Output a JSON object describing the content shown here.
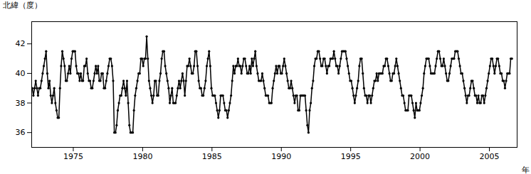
{
  "chart_data": {
    "type": "line",
    "marker": "o",
    "grid": false,
    "ylabel": "北緯（度）",
    "xlabel": "年",
    "xlim": [
      1972.0,
      2007.0
    ],
    "xticks": [
      1975,
      1980,
      1985,
      1990,
      1995,
      2000,
      2005
    ],
    "ylim": [
      35.0,
      43.5
    ],
    "yticks": [
      36,
      38,
      40,
      42
    ],
    "x": [
      1972.0416666666667,
      1972.125,
      1972.2083333333333,
      1972.2916666666667,
      1972.375,
      1972.4583333333333,
      1972.5416666666667,
      1972.625,
      1972.7083333333333,
      1972.7916666666667,
      1972.875,
      1972.9583333333333,
      1973.0416666666667,
      1973.125,
      1973.2083333333333,
      1973.2916666666667,
      1973.375,
      1973.4583333333333,
      1973.5416666666667,
      1973.625,
      1973.7083333333333,
      1973.7916666666667,
      1973.875,
      1973.9583333333333,
      1974.0416666666667,
      1974.125,
      1974.2083333333333,
      1974.2916666666667,
      1974.375,
      1974.4583333333333,
      1974.5416666666667,
      1974.625,
      1974.7083333333333,
      1974.7916666666667,
      1974.875,
      1974.9583333333333,
      1975.0416666666667,
      1975.125,
      1975.2083333333333,
      1975.2916666666667,
      1975.375,
      1975.4583333333333,
      1975.5416666666667,
      1975.625,
      1975.7083333333333,
      1975.7916666666667,
      1975.875,
      1975.9583333333333,
      1976.0416666666667,
      1976.125,
      1976.2083333333333,
      1976.2916666666667,
      1976.375,
      1976.4583333333333,
      1976.5416666666667,
      1976.625,
      1976.7083333333333,
      1976.7916666666667,
      1976.875,
      1976.9583333333333,
      1977.0416666666667,
      1977.125,
      1977.2083333333333,
      1977.2916666666667,
      1977.375,
      1977.4583333333333,
      1977.5416666666667,
      1977.625,
      1977.7083333333333,
      1977.7916666666667,
      1977.875,
      1977.9583333333333,
      1978.0416666666667,
      1978.125,
      1978.2083333333333,
      1978.2916666666667,
      1978.375,
      1978.4583333333333,
      1978.5416666666667,
      1978.625,
      1978.7083333333333,
      1978.7916666666667,
      1978.875,
      1978.9583333333333,
      1979.0416666666667,
      1979.125,
      1979.2083333333333,
      1979.2916666666667,
      1979.375,
      1979.4583333333333,
      1979.5416666666667,
      1979.625,
      1979.7083333333333,
      1979.7916666666667,
      1979.875,
      1979.9583333333333,
      1980.0416666666667,
      1980.125,
      1980.2083333333333,
      1980.2916666666667,
      1980.375,
      1980.4583333333333,
      1980.5416666666667,
      1980.625,
      1980.7083333333333,
      1980.7916666666667,
      1980.875,
      1980.9583333333333,
      1981.0416666666667,
      1981.125,
      1981.2083333333333,
      1981.2916666666667,
      1981.375,
      1981.4583333333333,
      1981.5416666666667,
      1981.625,
      1981.7083333333333,
      1981.7916666666667,
      1981.875,
      1981.9583333333333,
      1982.0416666666667,
      1982.125,
      1982.2083333333333,
      1982.2916666666667,
      1982.375,
      1982.4583333333333,
      1982.5416666666667,
      1982.625,
      1982.7083333333333,
      1982.7916666666667,
      1982.875,
      1982.9583333333333,
      1983.0416666666667,
      1983.125,
      1983.2083333333333,
      1983.2916666666667,
      1983.375,
      1983.4583333333333,
      1983.5416666666667,
      1983.625,
      1983.7083333333333,
      1983.7916666666667,
      1983.875,
      1983.9583333333333,
      1984.0416666666667,
      1984.125,
      1984.2083333333333,
      1984.2916666666667,
      1984.375,
      1984.4583333333333,
      1984.5416666666667,
      1984.625,
      1984.7083333333333,
      1984.7916666666667,
      1984.875,
      1984.9583333333333,
      1985.0416666666667,
      1985.125,
      1985.2083333333333,
      1985.2916666666667,
      1985.375,
      1985.4583333333333,
      1985.5416666666667,
      1985.625,
      1985.7083333333333,
      1985.7916666666667,
      1985.875,
      1985.9583333333333,
      1986.0416666666667,
      1986.125,
      1986.2083333333333,
      1986.2916666666667,
      1986.375,
      1986.4583333333333,
      1986.5416666666667,
      1986.625,
      1986.7083333333333,
      1986.7916666666667,
      1986.875,
      1986.9583333333333,
      1987.0416666666667,
      1987.125,
      1987.2083333333333,
      1987.2916666666667,
      1987.375,
      1987.4583333333333,
      1987.5416666666667,
      1987.625,
      1987.7083333333333,
      1987.7916666666667,
      1987.875,
      1987.9583333333333,
      1988.0416666666667,
      1988.125,
      1988.2083333333333,
      1988.2916666666667,
      1988.375,
      1988.4583333333333,
      1988.5416666666667,
      1988.625,
      1988.7083333333333,
      1988.7916666666667,
      1988.875,
      1988.9583333333333,
      1989.0416666666667,
      1989.125,
      1989.2083333333333,
      1989.2916666666667,
      1989.375,
      1989.4583333333333,
      1989.5416666666667,
      1989.625,
      1989.7083333333333,
      1989.7916666666667,
      1989.875,
      1989.9583333333333,
      1990.0416666666667,
      1990.125,
      1990.2083333333333,
      1990.2916666666667,
      1990.375,
      1990.4583333333333,
      1990.5416666666667,
      1990.625,
      1990.7083333333333,
      1990.7916666666667,
      1990.875,
      1990.9583333333333,
      1991.0416666666667,
      1991.125,
      1991.2083333333333,
      1991.2916666666667,
      1991.375,
      1991.4583333333333,
      1991.5416666666667,
      1991.625,
      1991.7083333333333,
      1991.7916666666667,
      1991.875,
      1991.9583333333333,
      1992.0416666666667,
      1992.125,
      1992.2083333333333,
      1992.2916666666667,
      1992.375,
      1992.4583333333333,
      1992.5416666666667,
      1992.625,
      1992.7083333333333,
      1992.7916666666667,
      1992.875,
      1992.9583333333333,
      1993.0416666666667,
      1993.125,
      1993.2083333333333,
      1993.2916666666667,
      1993.375,
      1993.4583333333333,
      1993.5416666666667,
      1993.625,
      1993.7083333333333,
      1993.7916666666667,
      1993.875,
      1993.9583333333333,
      1994.0416666666667,
      1994.125,
      1994.2083333333333,
      1994.2916666666667,
      1994.375,
      1994.4583333333333,
      1994.5416666666667,
      1994.625,
      1994.7083333333333,
      1994.7916666666667,
      1994.875,
      1994.9583333333333,
      1995.0416666666667,
      1995.125,
      1995.2083333333333,
      1995.2916666666667,
      1995.375,
      1995.4583333333333,
      1995.5416666666667,
      1995.625,
      1995.7083333333333,
      1995.7916666666667,
      1995.875,
      1995.9583333333333,
      1996.0416666666667,
      1996.125,
      1996.2083333333333,
      1996.2916666666667,
      1996.375,
      1996.4583333333333,
      1996.5416666666667,
      1996.625,
      1996.7083333333333,
      1996.7916666666667,
      1996.875,
      1996.9583333333333,
      1997.0416666666667,
      1997.125,
      1997.2083333333333,
      1997.2916666666667,
      1997.375,
      1997.4583333333333,
      1997.5416666666667,
      1997.625,
      1997.7083333333333,
      1997.7916666666667,
      1997.875,
      1997.9583333333333,
      1998.0416666666667,
      1998.125,
      1998.2083333333333,
      1998.2916666666667,
      1998.375,
      1998.4583333333333,
      1998.5416666666667,
      1998.625,
      1998.7083333333333,
      1998.7916666666667,
      1998.875,
      1998.9583333333333,
      1999.0416666666667,
      1999.125,
      1999.2083333333333,
      1999.2916666666667,
      1999.375,
      1999.4583333333333,
      1999.5416666666667,
      1999.625,
      1999.7083333333333,
      1999.7916666666667,
      1999.875,
      1999.9583333333333,
      2000.0416666666667,
      2000.125,
      2000.2083333333333,
      2000.2916666666667,
      2000.375,
      2000.4583333333333,
      2000.5416666666667,
      2000.625,
      2000.7083333333333,
      2000.7916666666667,
      2000.875,
      2000.9583333333333,
      2001.0416666666667,
      2001.125,
      2001.2083333333333,
      2001.2916666666667,
      2001.375,
      2001.4583333333333,
      2001.5416666666667,
      2001.625,
      2001.7083333333333,
      2001.7916666666667,
      2001.875,
      2001.9583333333333,
      2002.0416666666667,
      2002.125,
      2002.2083333333333,
      2002.2916666666667,
      2002.375,
      2002.4583333333333,
      2002.5416666666667,
      2002.625,
      2002.7083333333333,
      2002.7916666666667,
      2002.875,
      2002.9583333333333,
      2003.0416666666667,
      2003.125,
      2003.2083333333333,
      2003.2916666666667,
      2003.375,
      2003.4583333333333,
      2003.5416666666667,
      2003.625,
      2003.7083333333333,
      2003.7916666666667,
      2003.875,
      2003.9583333333333,
      2004.0416666666667,
      2004.125,
      2004.2083333333333,
      2004.2916666666667,
      2004.375,
      2004.4583333333333,
      2004.5416666666667,
      2004.625,
      2004.7083333333333,
      2004.7916666666667,
      2004.875,
      2004.9583333333333,
      2005.0416666666667,
      2005.125,
      2005.2083333333333,
      2005.2916666666667,
      2005.375,
      2005.4583333333333,
      2005.5416666666667,
      2005.625,
      2005.7083333333333,
      2005.7916666666667,
      2005.875,
      2005.9583333333333,
      2006.0416666666667,
      2006.125,
      2006.2083333333333,
      2006.2916666666667,
      2006.375,
      2006.4583333333333,
      2006.5416666666667,
      2006.625
    ],
    "values": [
      39.0,
      38.5,
      39.0,
      39.5,
      39.0,
      38.5,
      39.0,
      39.0,
      39.5,
      40.0,
      40.5,
      41.0,
      41.5,
      40.0,
      39.0,
      39.5,
      38.5,
      38.0,
      38.5,
      39.0,
      38.0,
      37.5,
      37.0,
      37.0,
      39.0,
      40.5,
      41.5,
      41.0,
      40.5,
      39.5,
      39.5,
      40.0,
      40.5,
      40.0,
      41.0,
      41.5,
      41.5,
      41.5,
      40.5,
      40.0,
      40.0,
      39.5,
      40.0,
      39.5,
      39.5,
      40.5,
      40.5,
      41.0,
      40.0,
      39.5,
      39.5,
      39.0,
      39.0,
      39.5,
      40.0,
      40.5,
      40.0,
      40.5,
      39.5,
      39.5,
      40.0,
      40.0,
      39.0,
      39.0,
      39.5,
      40.0,
      40.5,
      41.0,
      41.0,
      40.5,
      39.5,
      36.0,
      36.0,
      36.5,
      37.5,
      38.0,
      38.5,
      38.5,
      39.0,
      39.5,
      39.0,
      38.5,
      39.5,
      38.0,
      36.5,
      36.0,
      36.0,
      36.0,
      37.5,
      38.5,
      39.0,
      39.5,
      40.0,
      40.0,
      41.0,
      41.0,
      40.5,
      41.0,
      41.0,
      42.5,
      41.0,
      39.5,
      39.0,
      38.5,
      38.0,
      38.5,
      39.5,
      39.5,
      38.5,
      38.5,
      39.5,
      40.0,
      41.0,
      41.5,
      41.5,
      40.5,
      40.0,
      39.5,
      39.0,
      38.0,
      38.5,
      39.0,
      38.0,
      38.0,
      38.0,
      38.5,
      39.0,
      39.5,
      39.0,
      39.5,
      40.0,
      39.5,
      38.5,
      39.5,
      40.5,
      40.5,
      41.0,
      40.5,
      40.0,
      40.0,
      40.5,
      41.5,
      41.5,
      40.5,
      39.5,
      39.0,
      39.0,
      38.5,
      38.5,
      39.0,
      39.5,
      40.5,
      41.0,
      41.5,
      40.5,
      39.0,
      38.5,
      38.5,
      38.5,
      38.0,
      37.5,
      37.0,
      37.5,
      38.5,
      38.5,
      38.5,
      38.0,
      37.5,
      37.5,
      37.0,
      37.5,
      38.0,
      38.5,
      39.5,
      40.5,
      40.0,
      40.5,
      40.5,
      41.0,
      40.5,
      40.5,
      40.0,
      40.5,
      41.0,
      41.0,
      40.5,
      40.0,
      40.0,
      40.5,
      40.0,
      41.0,
      40.5,
      41.0,
      41.5,
      40.5,
      40.0,
      39.5,
      39.5,
      39.5,
      40.0,
      39.5,
      39.0,
      38.5,
      38.5,
      38.5,
      38.0,
      38.0,
      38.0,
      39.0,
      39.5,
      40.0,
      40.5,
      40.0,
      40.5,
      40.5,
      40.0,
      40.0,
      40.5,
      41.0,
      40.5,
      40.0,
      39.5,
      39.0,
      39.0,
      39.5,
      39.0,
      38.5,
      38.0,
      38.5,
      38.5,
      37.5,
      37.5,
      38.5,
      38.5,
      38.5,
      38.5,
      38.5,
      37.5,
      36.5,
      36.0,
      37.5,
      38.0,
      39.0,
      39.5,
      40.5,
      41.0,
      41.0,
      41.5,
      41.5,
      41.0,
      40.5,
      40.5,
      41.0,
      41.0,
      40.5,
      40.0,
      40.5,
      40.5,
      41.0,
      41.0,
      41.0,
      41.5,
      41.0,
      40.5,
      40.5,
      40.0,
      40.5,
      41.0,
      41.5,
      41.5,
      41.5,
      41.5,
      41.0,
      40.5,
      40.0,
      39.5,
      39.5,
      39.0,
      38.5,
      38.0,
      38.5,
      39.0,
      39.5,
      40.5,
      41.0,
      41.0,
      40.0,
      39.0,
      38.5,
      38.5,
      38.0,
      38.5,
      38.5,
      38.0,
      38.5,
      39.0,
      39.5,
      39.5,
      40.0,
      39.5,
      40.0,
      40.0,
      40.0,
      40.0,
      40.5,
      40.5,
      41.0,
      41.0,
      40.5,
      40.0,
      39.5,
      39.5,
      40.0,
      40.0,
      40.5,
      41.0,
      40.5,
      40.0,
      39.5,
      39.0,
      38.5,
      38.5,
      38.0,
      37.5,
      37.5,
      37.5,
      38.5,
      38.5,
      38.5,
      38.0,
      37.5,
      37.0,
      38.0,
      37.5,
      37.5,
      37.5,
      38.0,
      38.5,
      39.0,
      40.0,
      40.5,
      41.0,
      41.0,
      41.0,
      40.5,
      40.0,
      40.0,
      40.0,
      40.0,
      40.5,
      41.0,
      41.5,
      41.5,
      41.0,
      40.5,
      40.5,
      41.0,
      40.5,
      40.0,
      39.5,
      39.5,
      40.0,
      40.5,
      41.0,
      41.0,
      41.0,
      41.5,
      41.5,
      41.5,
      41.0,
      40.5,
      40.0,
      40.0,
      39.5,
      39.0,
      38.5,
      38.0,
      38.5,
      38.5,
      39.0,
      39.5,
      39.5,
      39.0,
      38.5,
      38.5,
      38.0,
      38.5,
      38.0,
      38.0,
      38.5,
      38.5,
      38.0,
      38.5,
      39.0,
      39.5,
      40.0,
      40.5,
      41.0,
      41.0,
      40.5,
      40.0,
      40.5,
      41.0,
      41.0,
      40.5,
      40.0,
      40.0,
      39.5,
      39.5,
      39.0,
      39.5,
      40.0,
      40.0,
      40.0,
      41.0,
      41.0
    ]
  }
}
